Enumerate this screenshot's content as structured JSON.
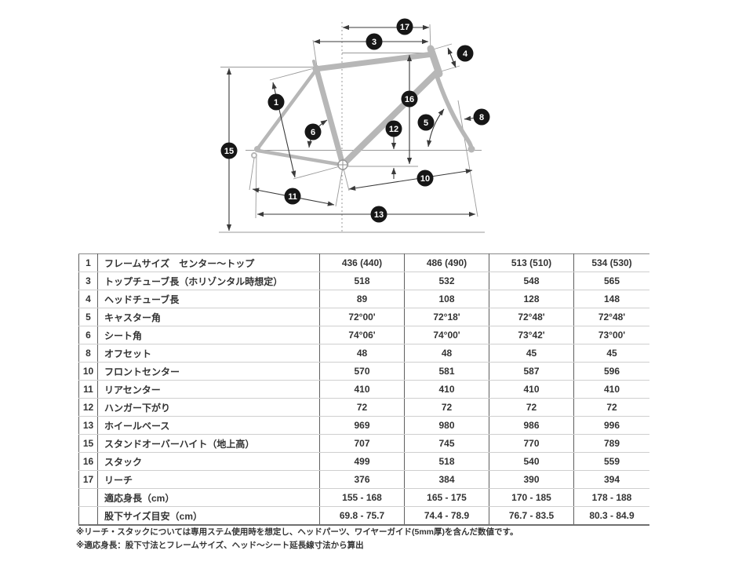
{
  "colors": {
    "frame_gray": "#b7b7b7",
    "callout_black": "#161616",
    "callout_text": "#ffffff"
  },
  "diagram": {
    "callouts": [
      {
        "id": "1",
        "label": "1"
      },
      {
        "id": "3",
        "label": "3"
      },
      {
        "id": "4",
        "label": "4"
      },
      {
        "id": "5",
        "label": "5"
      },
      {
        "id": "6",
        "label": "6"
      },
      {
        "id": "8",
        "label": "8"
      },
      {
        "id": "10",
        "label": "10"
      },
      {
        "id": "11",
        "label": "11"
      },
      {
        "id": "12",
        "label": "12"
      },
      {
        "id": "13",
        "label": "13"
      },
      {
        "id": "15",
        "label": "15"
      },
      {
        "id": "16",
        "label": "16"
      },
      {
        "id": "17",
        "label": "17"
      }
    ]
  },
  "table": {
    "rows": [
      {
        "no": "1",
        "label": "フレームサイズ　センター〜トップ",
        "values": [
          "436 (440)",
          "486 (490)",
          "513 (510)",
          "534 (530)"
        ]
      },
      {
        "no": "3",
        "label": "トップチューブ長（ホリゾンタル時想定）",
        "values": [
          "518",
          "532",
          "548",
          "565"
        ]
      },
      {
        "no": "4",
        "label": "ヘッドチューブ長",
        "values": [
          "89",
          "108",
          "128",
          "148"
        ]
      },
      {
        "no": "5",
        "label": "キャスター角",
        "values": [
          "72°00'",
          "72°18'",
          "72°48'",
          "72°48'"
        ]
      },
      {
        "no": "6",
        "label": "シート角",
        "values": [
          "74°06'",
          "74°00'",
          "73°42'",
          "73°00'"
        ]
      },
      {
        "no": "8",
        "label": "オフセット",
        "values": [
          "48",
          "48",
          "45",
          "45"
        ]
      },
      {
        "no": "10",
        "label": "フロントセンター",
        "values": [
          "570",
          "581",
          "587",
          "596"
        ]
      },
      {
        "no": "11",
        "label": "リアセンター",
        "values": [
          "410",
          "410",
          "410",
          "410"
        ]
      },
      {
        "no": "12",
        "label": "ハンガー下がり",
        "values": [
          "72",
          "72",
          "72",
          "72"
        ]
      },
      {
        "no": "13",
        "label": "ホイールベース",
        "values": [
          "969",
          "980",
          "986",
          "996"
        ]
      },
      {
        "no": "15",
        "label": "スタンドオーバーハイト（地上高）",
        "values": [
          "707",
          "745",
          "770",
          "789"
        ]
      },
      {
        "no": "16",
        "label": "スタック",
        "values": [
          "499",
          "518",
          "540",
          "559"
        ]
      },
      {
        "no": "17",
        "label": "リーチ",
        "values": [
          "376",
          "384",
          "390",
          "394"
        ]
      },
      {
        "no": "",
        "label": "適応身長（cm）",
        "values": [
          "155 - 168",
          "165 - 175",
          "170 - 185",
          "178 - 188"
        ]
      },
      {
        "no": "",
        "label": "股下サイズ目安（cm）",
        "values": [
          "69.8 - 75.7",
          "74.4 - 78.9",
          "76.7 - 83.5",
          "80.3 - 84.9"
        ]
      }
    ]
  },
  "notes": [
    "※リーチ・スタックについては専用ステム使用時を想定し、ヘッドパーツ、ワイヤーガイド(5mm厚)を含んだ数値です。",
    "※適応身長：股下寸法とフレームサイズ、ヘッド〜シート延長線寸法から算出"
  ]
}
